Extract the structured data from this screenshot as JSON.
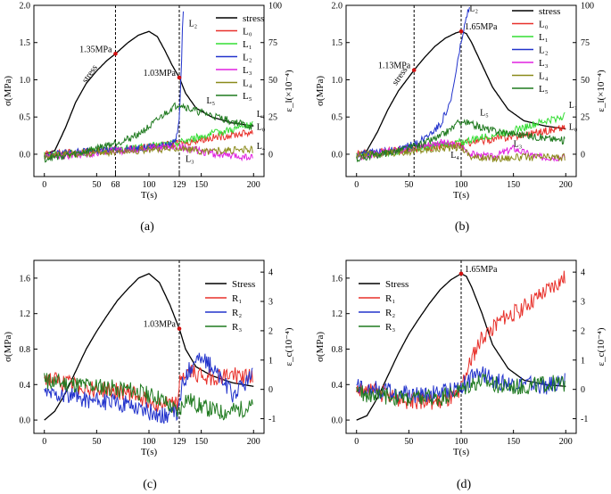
{
  "figure": {
    "panels": [
      "(a)",
      "(b)",
      "(c)",
      "(d)"
    ]
  },
  "chart_data": [
    {
      "panel": "(a)",
      "type": "line",
      "xlabel": "T(s)",
      "ylabel": "σ(MPa)",
      "y2label": "ε_l(×10⁻⁴)",
      "xlim": [
        -10,
        210
      ],
      "ylim": [
        -0.3,
        2.0
      ],
      "y2lim": [
        -15,
        100
      ],
      "xticks": [
        "0",
        "50",
        "68",
        "100",
        "129",
        "150",
        "200"
      ],
      "xtick_values": [
        0,
        50,
        68,
        100,
        129,
        150,
        200
      ],
      "yticks": [
        "0.0",
        "0.5",
        "1.0",
        "1.5",
        "2.0"
      ],
      "ytick_values": [
        0,
        0.5,
        1.0,
        1.5,
        2.0
      ],
      "y2ticks": [
        "0",
        "25",
        "50",
        "75",
        "100"
      ],
      "y2tick_values": [
        0,
        25,
        50,
        75,
        100
      ],
      "vlines": [
        68,
        129
      ],
      "legend_position": "top-right",
      "annotations": [
        {
          "text": "1.35MPa",
          "x": 68,
          "y": 1.35,
          "point": true
        },
        {
          "text": "1.03MPa",
          "x": 129,
          "y": 1.03,
          "point": true
        },
        {
          "text": "stress",
          "x": 40,
          "y": 0.95
        },
        {
          "text": "L₂",
          "x": 138,
          "y": 1.72
        },
        {
          "text": "L₅",
          "x": 155,
          "y": 0.68
        },
        {
          "text": "L₁",
          "x": 203,
          "y": 0.5
        },
        {
          "text": "L₀",
          "x": 203,
          "y": 0.33
        },
        {
          "text": "L₄",
          "x": 203,
          "y": 0.07
        },
        {
          "text": "L₃",
          "x": 135,
          "y": -0.1
        }
      ],
      "series": [
        {
          "name": "stress",
          "color": "#000000",
          "axis": "left",
          "x": [
            0,
            10,
            20,
            30,
            40,
            50,
            60,
            68,
            80,
            90,
            100,
            108,
            115,
            122,
            129,
            135,
            145,
            160,
            180,
            200
          ],
          "y": [
            0.0,
            0.05,
            0.35,
            0.7,
            0.95,
            1.12,
            1.26,
            1.35,
            1.5,
            1.6,
            1.65,
            1.58,
            1.4,
            1.2,
            1.03,
            0.82,
            0.62,
            0.5,
            0.42,
            0.38
          ]
        },
        {
          "name": "L₀",
          "color": "#e8302a",
          "axis": "right",
          "x": [
            0,
            50,
            100,
            129,
            150,
            200
          ],
          "y": [
            0,
            2,
            5,
            7,
            10,
            15
          ]
        },
        {
          "name": "L₁",
          "color": "#33dd33",
          "axis": "right",
          "x": [
            0,
            50,
            100,
            129,
            150,
            200
          ],
          "y": [
            -1,
            2,
            5,
            8,
            12,
            20
          ]
        },
        {
          "name": "L₂",
          "color": "#2233cc",
          "axis": "right",
          "x": [
            0,
            50,
            100,
            120,
            126,
            129,
            131,
            132,
            133
          ],
          "y": [
            0,
            2,
            5,
            6,
            10,
            25,
            60,
            85,
            100
          ]
        },
        {
          "name": "L₃",
          "color": "#e020e0",
          "axis": "right",
          "x": [
            0,
            50,
            100,
            129,
            150,
            175,
            200
          ],
          "y": [
            -2,
            1,
            4,
            5,
            2,
            -1,
            -2
          ]
        },
        {
          "name": "L₄",
          "color": "#8a8a1a",
          "axis": "right",
          "x": [
            0,
            50,
            100,
            129,
            150,
            200
          ],
          "y": [
            -1,
            1,
            3,
            4,
            2,
            3
          ]
        },
        {
          "name": "L₅",
          "color": "#1f7a1f",
          "axis": "right",
          "x": [
            0,
            30,
            50,
            80,
            100,
            110,
            120,
            129,
            140,
            160,
            180,
            200
          ],
          "y": [
            -3,
            0,
            4,
            10,
            18,
            24,
            30,
            34,
            30,
            26,
            22,
            18
          ]
        }
      ]
    },
    {
      "panel": "(b)",
      "type": "line",
      "xlabel": "T(s)",
      "ylabel": "σ(MPa)",
      "y2label": "ε_l(×10⁻⁴)",
      "xlim": [
        -10,
        210
      ],
      "ylim": [
        -0.3,
        2.0
      ],
      "y2lim": [
        -15,
        100
      ],
      "xticks": [
        "0",
        "50",
        "100",
        "150",
        "200"
      ],
      "xtick_values": [
        0,
        50,
        100,
        150,
        200
      ],
      "yticks": [
        "0.0",
        "0.5",
        "1.0",
        "1.5",
        "2.0"
      ],
      "ytick_values": [
        0,
        0.5,
        1.0,
        1.5,
        2.0
      ],
      "y2ticks": [
        "0",
        "25",
        "50",
        "75",
        "100"
      ],
      "y2tick_values": [
        0,
        25,
        50,
        75,
        100
      ],
      "vlines": [
        55,
        100
      ],
      "legend_position": "top-right",
      "annotations": [
        {
          "text": "1.65MPa",
          "x": 100,
          "y": 1.65,
          "point": true
        },
        {
          "text": "1.13MPa",
          "x": 55,
          "y": 1.13,
          "point": true
        },
        {
          "text": "stress",
          "x": 38,
          "y": 0.92
        },
        {
          "text": "L₂",
          "x": 108,
          "y": 1.92
        },
        {
          "text": "L₅",
          "x": 118,
          "y": 0.52
        },
        {
          "text": "L₁",
          "x": 203,
          "y": 0.62
        },
        {
          "text": "L₀",
          "x": 203,
          "y": 0.33
        },
        {
          "text": "L₃",
          "x": 150,
          "y": 0.1
        },
        {
          "text": "L₄",
          "x": 90,
          "y": -0.05
        }
      ],
      "series": [
        {
          "name": "stress",
          "color": "#000000",
          "axis": "left",
          "x": [
            0,
            10,
            20,
            30,
            40,
            55,
            65,
            75,
            85,
            95,
            100,
            105,
            110,
            120,
            130,
            145,
            160,
            180,
            200
          ],
          "y": [
            0.0,
            0.05,
            0.3,
            0.6,
            0.85,
            1.13,
            1.3,
            1.45,
            1.56,
            1.63,
            1.65,
            1.62,
            1.5,
            1.2,
            0.9,
            0.6,
            0.45,
            0.38,
            0.34
          ]
        },
        {
          "name": "L₀",
          "color": "#e8302a",
          "axis": "right",
          "x": [
            0,
            50,
            100,
            150,
            200
          ],
          "y": [
            0,
            3,
            7,
            12,
            18
          ]
        },
        {
          "name": "L₁",
          "color": "#33dd33",
          "axis": "right",
          "x": [
            0,
            50,
            100,
            150,
            200
          ],
          "y": [
            -1,
            3,
            8,
            16,
            26
          ]
        },
        {
          "name": "L₂",
          "color": "#2233cc",
          "axis": "right",
          "x": [
            0,
            40,
            60,
            80,
            90,
            95,
            100,
            104,
            108
          ],
          "y": [
            0,
            3,
            8,
            20,
            35,
            55,
            75,
            88,
            100
          ]
        },
        {
          "name": "L₃",
          "color": "#e020e0",
          "axis": "right",
          "x": [
            0,
            50,
            80,
            100,
            110,
            130,
            150,
            160,
            175,
            200
          ],
          "y": [
            -2,
            4,
            8,
            5,
            0,
            -2,
            4,
            1,
            -2,
            -2
          ]
        },
        {
          "name": "L₄",
          "color": "#8a8a1a",
          "axis": "right",
          "x": [
            0,
            50,
            100,
            110,
            130,
            160,
            200
          ],
          "y": [
            -1,
            2,
            5,
            -2,
            -3,
            -2,
            -2
          ]
        },
        {
          "name": "L₅",
          "color": "#1f7a1f",
          "axis": "right",
          "x": [
            0,
            30,
            60,
            80,
            100,
            110,
            130,
            150,
            170,
            200
          ],
          "y": [
            -3,
            1,
            6,
            12,
            22,
            20,
            16,
            14,
            12,
            9
          ]
        }
      ]
    },
    {
      "panel": "(c)",
      "type": "line",
      "xlabel": "T(s)",
      "ylabel": "σ(MPa)",
      "y2label": "ε_c(10⁻⁴)",
      "xlim": [
        -10,
        210
      ],
      "ylim": [
        -0.15,
        1.8
      ],
      "y2lim": [
        -1.5,
        4.4
      ],
      "xticks": [
        "0",
        "50",
        "100",
        "129",
        "150",
        "200"
      ],
      "xtick_values": [
        0,
        50,
        100,
        129,
        150,
        200
      ],
      "yticks": [
        "0.0",
        "0.4",
        "0.8",
        "1.2",
        "1.6"
      ],
      "ytick_values": [
        0,
        0.4,
        0.8,
        1.2,
        1.6
      ],
      "y2ticks": [
        "-1",
        "0",
        "1",
        "2",
        "3",
        "4"
      ],
      "y2tick_values": [
        -1,
        0,
        1,
        2,
        3,
        4
      ],
      "vlines": [
        129
      ],
      "legend_position": "top-right",
      "annotations": [
        {
          "text": "1.03MPa",
          "x": 129,
          "y": 1.03,
          "point": true
        }
      ],
      "series": [
        {
          "name": "Stress",
          "color": "#000000",
          "axis": "left",
          "x": [
            0,
            10,
            20,
            30,
            40,
            50,
            60,
            70,
            80,
            90,
            100,
            110,
            120,
            129,
            135,
            145,
            160,
            180,
            200
          ],
          "y": [
            0.0,
            0.1,
            0.3,
            0.55,
            0.8,
            1.0,
            1.18,
            1.35,
            1.48,
            1.6,
            1.65,
            1.55,
            1.3,
            1.03,
            0.8,
            0.6,
            0.5,
            0.42,
            0.38
          ]
        },
        {
          "name": "R₁",
          "color": "#e8302a",
          "axis": "right",
          "x": [
            0,
            20,
            50,
            80,
            110,
            128,
            130,
            140,
            160,
            180,
            200
          ],
          "y": [
            0.4,
            0.2,
            0.0,
            -0.1,
            -0.5,
            -0.5,
            0.4,
            0.6,
            0.4,
            0.5,
            0.4
          ]
        },
        {
          "name": "R₂",
          "color": "#2233cc",
          "axis": "right",
          "x": [
            0,
            20,
            50,
            80,
            110,
            128,
            132,
            145,
            160,
            180,
            200
          ],
          "y": [
            -0.1,
            -0.2,
            -0.4,
            -0.5,
            -0.9,
            -0.8,
            0.2,
            1.1,
            0.8,
            -0.2,
            0.5
          ]
        },
        {
          "name": "R₃",
          "color": "#1f7a1f",
          "axis": "right",
          "x": [
            0,
            20,
            50,
            80,
            110,
            128,
            135,
            150,
            170,
            200
          ],
          "y": [
            0.3,
            0.2,
            0.1,
            0.0,
            -0.3,
            -0.8,
            -0.3,
            -0.6,
            -0.8,
            -0.6
          ]
        }
      ]
    },
    {
      "panel": "(d)",
      "type": "line",
      "xlabel": "T(s)",
      "ylabel": "σ(MPa)",
      "y2label": "ε_c(10⁻⁴)",
      "xlim": [
        -10,
        210
      ],
      "ylim": [
        -0.15,
        1.8
      ],
      "y2lim": [
        -1.5,
        4.4
      ],
      "xticks": [
        "0",
        "50",
        "100",
        "150",
        "200"
      ],
      "xtick_values": [
        0,
        50,
        100,
        150,
        200
      ],
      "yticks": [
        "0.0",
        "0.4",
        "0.8",
        "1.2",
        "1.6"
      ],
      "ytick_values": [
        0,
        0.4,
        0.8,
        1.2,
        1.6
      ],
      "y2ticks": [
        "-1",
        "0",
        "1",
        "2",
        "3",
        "4"
      ],
      "y2tick_values": [
        -1,
        0,
        1,
        2,
        3,
        4
      ],
      "vlines": [
        100
      ],
      "legend_position": "top-left",
      "annotations": [
        {
          "text": "1.65MPa",
          "x": 100,
          "y": 1.65,
          "point": true
        }
      ],
      "series": [
        {
          "name": "Stress",
          "color": "#000000",
          "axis": "left",
          "x": [
            0,
            10,
            20,
            30,
            40,
            50,
            60,
            70,
            80,
            90,
            100,
            105,
            110,
            120,
            130,
            145,
            160,
            180,
            200
          ],
          "y": [
            0.0,
            0.05,
            0.25,
            0.5,
            0.75,
            0.97,
            1.15,
            1.32,
            1.47,
            1.58,
            1.65,
            1.62,
            1.5,
            1.2,
            0.85,
            0.58,
            0.45,
            0.4,
            0.38
          ]
        },
        {
          "name": "R₁",
          "color": "#e8302a",
          "axis": "right",
          "x": [
            0,
            20,
            50,
            80,
            98,
            102,
            110,
            120,
            140,
            160,
            180,
            200
          ],
          "y": [
            0.0,
            -0.1,
            -0.4,
            -0.4,
            -0.2,
            0.3,
            1.0,
            1.8,
            2.4,
            2.8,
            3.3,
            3.8
          ]
        },
        {
          "name": "R₂",
          "color": "#2233cc",
          "axis": "right",
          "x": [
            0,
            20,
            50,
            80,
            100,
            110,
            120,
            140,
            160,
            180,
            200
          ],
          "y": [
            0.1,
            0.0,
            -0.2,
            -0.1,
            0.1,
            0.4,
            0.5,
            0.2,
            0.2,
            0.1,
            0.3
          ]
        },
        {
          "name": "R₃",
          "color": "#1f7a1f",
          "axis": "right",
          "x": [
            0,
            20,
            50,
            80,
            100,
            110,
            120,
            140,
            160,
            180,
            200
          ],
          "y": [
            -0.1,
            -0.2,
            -0.3,
            -0.3,
            0.0,
            0.2,
            0.3,
            0.1,
            0.1,
            0.2,
            0.2
          ]
        }
      ]
    }
  ]
}
